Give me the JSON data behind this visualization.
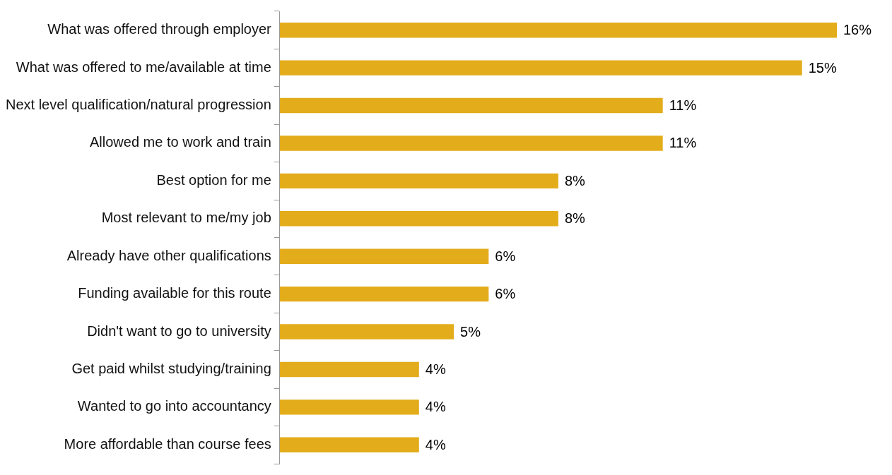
{
  "chart_data": {
    "type": "bar",
    "orientation": "horizontal",
    "categories": [
      "What was offered through employer",
      "What was offered to me/available at time",
      "Next level qualification/natural progression",
      "Allowed me to work and train",
      "Best option for me",
      "Most relevant to me/my job",
      "Already have other qualifications",
      "Funding available for this route",
      "Didn't want to go to university",
      "Get paid whilst studying/training",
      "Wanted to go into accountancy",
      "More affordable than course fees"
    ],
    "values": [
      16,
      15,
      11,
      11,
      8,
      8,
      6,
      6,
      5,
      4,
      4,
      4
    ],
    "value_labels": [
      "16%",
      "15%",
      "11%",
      "11%",
      "8%",
      "8%",
      "6%",
      "6%",
      "5%",
      "4%",
      "4%",
      "4%"
    ],
    "color": "#e3ac1a"
  }
}
